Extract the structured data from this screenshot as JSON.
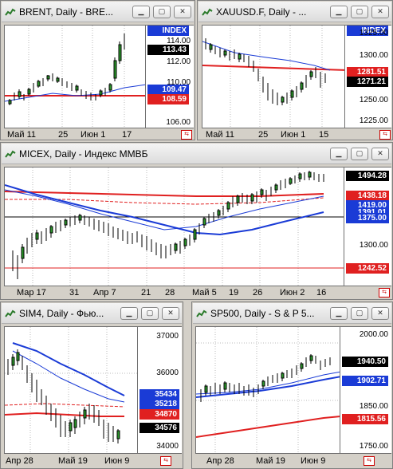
{
  "windows": {
    "brent": {
      "title": "BRENT, Daily - BRE...",
      "index_badge": "INDEX",
      "y_labels": [
        "114.00",
        "112.00",
        "110.00",
        "106.00"
      ],
      "price_tags": [
        {
          "value": "113.43",
          "color": "#000000"
        },
        {
          "value": "109.47",
          "color": "#1a3bd6"
        },
        {
          "value": "108.59",
          "color": "#e02020"
        }
      ],
      "x_labels": [
        "Май 11",
        "25",
        "Июн 1",
        "17"
      ]
    },
    "xauusd": {
      "title": "XAUUSD.F, Daily - ...",
      "index_badge": "INDEX",
      "y_labels": [
        "1325.00",
        "1300.00",
        "1250.00",
        "1225.00"
      ],
      "price_tags": [
        {
          "value": "1281.51",
          "color": "#e02020"
        },
        {
          "value": "1271.21",
          "color": "#000000"
        }
      ],
      "x_labels": [
        "Май 11",
        "25",
        "Июн 1",
        "15"
      ]
    },
    "micex": {
      "title": "MICEX, Daily - Индекс ММВБ",
      "y_labels": [
        "1300.00"
      ],
      "price_tags": [
        {
          "value": "1494.28",
          "color": "#000000"
        },
        {
          "value": "1438.18",
          "color": "#e02020"
        },
        {
          "value": "1419.00",
          "color": "#1a3bd6"
        },
        {
          "value": "1391.01",
          "color": "#1a3bd6"
        },
        {
          "value": "1375.00",
          "color": "#1a3bd6"
        },
        {
          "value": "1242.52",
          "color": "#e02020"
        }
      ],
      "x_labels": [
        "Мар 17",
        "31",
        "Апр 7",
        "21",
        "28",
        "Май 5",
        "19",
        "26",
        "Июн 2",
        "16"
      ]
    },
    "sim4": {
      "title": "SIM4, Daily - Фью...",
      "y_labels": [
        "37000",
        "36000",
        "34000"
      ],
      "price_tags": [
        {
          "value": "35434",
          "color": "#1a3bd6"
        },
        {
          "value": "35218",
          "color": "#1a3bd6"
        },
        {
          "value": "34870",
          "color": "#e02020"
        },
        {
          "value": "34576",
          "color": "#000000"
        }
      ],
      "x_labels": [
        "Апр 28",
        "Май 19",
        "Июн 9"
      ]
    },
    "sp500": {
      "title": "SP500, Daily - S & P 5...",
      "y_labels": [
        "2000.00",
        "1850.00",
        "1750.00"
      ],
      "price_tags": [
        {
          "value": "1940.50",
          "color": "#000000"
        },
        {
          "value": "1902.71",
          "color": "#1a3bd6"
        },
        {
          "value": "1815.56",
          "color": "#e02020"
        }
      ],
      "x_labels": [
        "Апр 28",
        "Май 19",
        "Июн 9"
      ]
    }
  }
}
